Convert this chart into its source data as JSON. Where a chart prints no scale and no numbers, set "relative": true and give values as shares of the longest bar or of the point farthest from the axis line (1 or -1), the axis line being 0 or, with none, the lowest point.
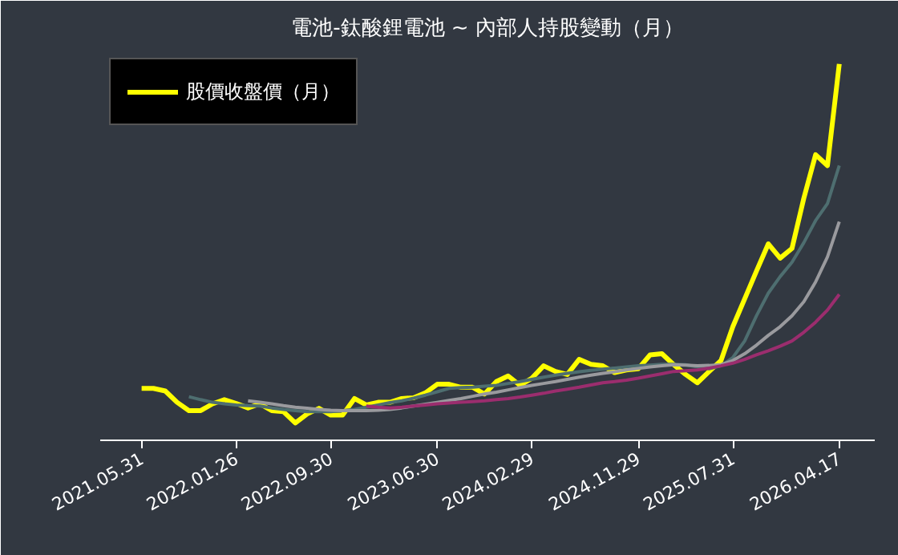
{
  "chart_data": {
    "type": "line",
    "title": "電池-鈦酸鋰電池 ~ 內部人持股變動（月）",
    "relative": true,
    "legend": "top left",
    "grid": false,
    "line_style": "solid",
    "marker": "none",
    "categories": [
      "2021.05.31",
      null,
      null,
      null,
      null,
      null,
      null,
      null,
      "2022.01.26",
      null,
      null,
      null,
      null,
      null,
      null,
      null,
      "2022.09.30",
      null,
      null,
      null,
      null,
      null,
      null,
      null,
      null,
      "2023.06.30",
      null,
      null,
      null,
      null,
      null,
      null,
      null,
      "2024.02.29",
      null,
      null,
      null,
      null,
      null,
      null,
      null,
      null,
      "2024.11.29",
      null,
      null,
      null,
      null,
      null,
      null,
      null,
      "2025.07.31",
      null,
      null,
      null,
      null,
      null,
      null,
      null,
      null,
      "2026.04.17"
    ],
    "series": [
      {
        "name": "股價收盤價（月）",
        "color": "#ffff00",
        "values": [
          0.138,
          0.138,
          0.131,
          0.101,
          0.079,
          0.079,
          0.097,
          0.108,
          0.098,
          0.086,
          0.097,
          0.079,
          0.076,
          0.046,
          0.07,
          0.085,
          0.067,
          0.067,
          0.111,
          0.094,
          0.101,
          0.101,
          0.111,
          0.113,
          0.126,
          0.149,
          0.149,
          0.141,
          0.141,
          0.123,
          0.156,
          0.171,
          0.146,
          0.165,
          0.198,
          0.183,
          0.175,
          0.215,
          0.202,
          0.198,
          0.18,
          0.187,
          0.19,
          0.227,
          0.23,
          0.201,
          0.175,
          0.153,
          0.183,
          0.212,
          0.302,
          0.376,
          0.45,
          0.522,
          0.484,
          0.51,
          0.643,
          0.759,
          0.73,
          1
        ]
      },
      {
        "color": "#4e6e70",
        "values": [
          null,
          null,
          null,
          null,
          0.116,
          0.108,
          0.101,
          0.097,
          0.094,
          0.092,
          0.091,
          0.086,
          0.082,
          0.079,
          0.076,
          0.076,
          0.076,
          0.079,
          0.082,
          0.088,
          0.094,
          0.1,
          0.105,
          0.112,
          0.12,
          0.129,
          0.138,
          0.14,
          0.141,
          0.144,
          0.146,
          0.151,
          0.156,
          0.162,
          0.168,
          0.173,
          0.178,
          0.182,
          0.186,
          0.189,
          0.192,
          0.195,
          0.198,
          0.2,
          0.202,
          0.202,
          0.201,
          0.195,
          0.19,
          0.198,
          0.22,
          0.264,
          0.331,
          0.391,
          0.435,
          0.473,
          0.525,
          0.584,
          0.629,
          0.73
        ]
      },
      {
        "color": "#9a9a9e",
        "values": [
          null,
          null,
          null,
          null,
          null,
          null,
          null,
          null,
          null,
          0.105,
          0.101,
          0.097,
          0.092,
          0.088,
          0.085,
          0.082,
          0.08,
          0.079,
          0.079,
          0.079,
          0.08,
          0.082,
          0.086,
          0.091,
          0.096,
          0.101,
          0.106,
          0.111,
          0.117,
          0.123,
          0.128,
          0.134,
          0.14,
          0.146,
          0.151,
          0.156,
          0.162,
          0.168,
          0.173,
          0.178,
          0.182,
          0.187,
          0.191,
          0.195,
          0.198,
          0.201,
          0.2,
          0.198,
          0.199,
          0.201,
          0.212,
          0.23,
          0.253,
          0.279,
          0.302,
          0.331,
          0.368,
          0.421,
          0.487,
          0.581
        ]
      },
      {
        "color": "#9b2d6e",
        "values": [
          null,
          null,
          null,
          null,
          null,
          null,
          null,
          null,
          null,
          null,
          null,
          null,
          null,
          null,
          null,
          null,
          null,
          null,
          null,
          0.091,
          0.088,
          0.086,
          0.088,
          0.091,
          0.094,
          0.097,
          0.099,
          0.101,
          0.103,
          0.105,
          0.108,
          0.111,
          0.115,
          0.12,
          0.125,
          0.131,
          0.136,
          0.141,
          0.147,
          0.153,
          0.156,
          0.16,
          0.165,
          0.171,
          0.177,
          0.183,
          0.185,
          0.187,
          0.192,
          0.198,
          0.205,
          0.215,
          0.227,
          0.238,
          0.25,
          0.264,
          0.287,
          0.314,
          0.346,
          0.388
        ]
      }
    ]
  }
}
